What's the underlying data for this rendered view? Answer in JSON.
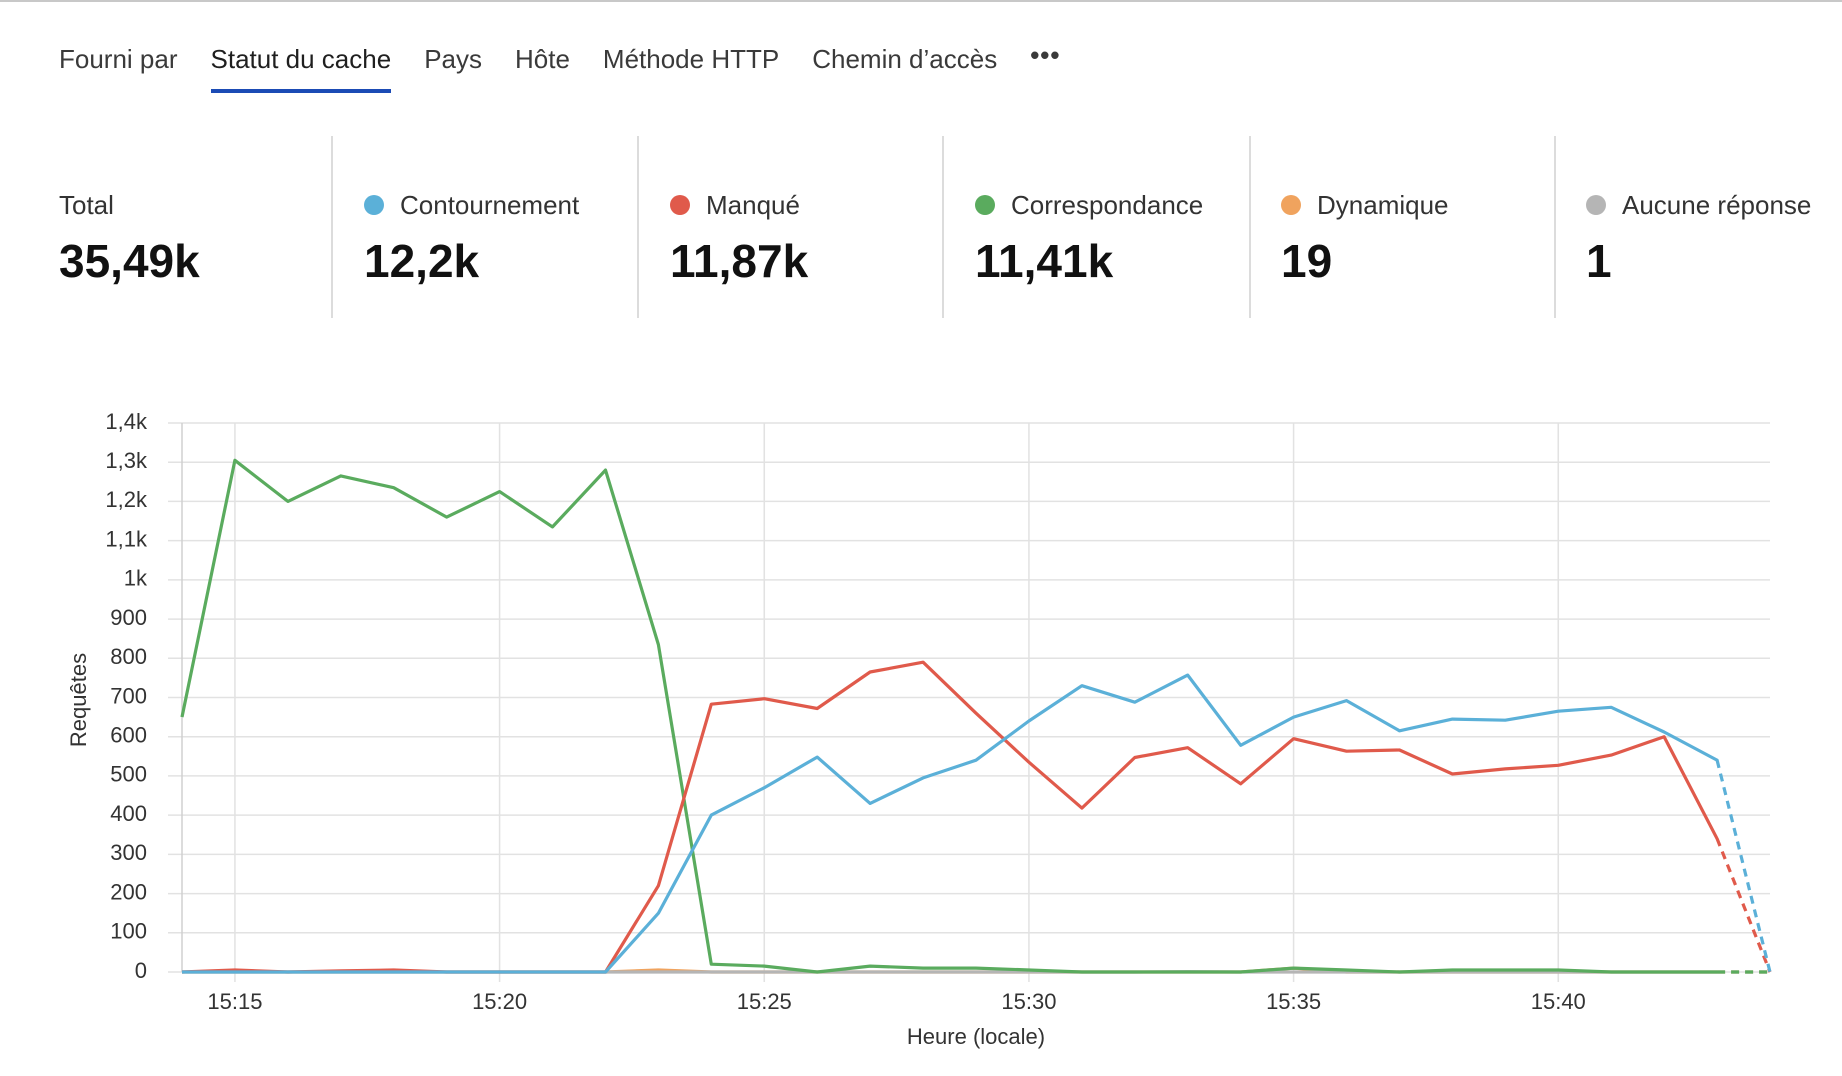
{
  "tabs": {
    "items": [
      "Fourni par",
      "Statut du cache",
      "Pays",
      "Hôte",
      "Méthode HTTP",
      "Chemin d’accès"
    ],
    "active": 1
  },
  "stats": [
    {
      "label": "Total",
      "value": "35,49k"
    },
    {
      "label": "Contournement",
      "value": "12,2k",
      "color": "#5bb0d8"
    },
    {
      "label": "Manqué",
      "value": "11,87k",
      "color": "#e05a4b"
    },
    {
      "label": "Correspondance",
      "value": "11,41k",
      "color": "#5aab5e"
    },
    {
      "label": "Dynamique",
      "value": "19",
      "color": "#f0a35e"
    },
    {
      "label": "Aucune réponse",
      "value": "1",
      "color": "#b5b5b5"
    }
  ],
  "chart_data": {
    "type": "line",
    "y_label": "Requêtes",
    "x_label": "Heure (locale)",
    "categories": [
      null,
      "15:15",
      null,
      null,
      null,
      null,
      "15:20",
      null,
      null,
      null,
      null,
      "15:25",
      null,
      null,
      null,
      null,
      "15:30",
      null,
      null,
      null,
      null,
      "15:35",
      null,
      null,
      null,
      null,
      "15:40",
      null,
      null,
      null,
      null
    ],
    "series": [
      {
        "name": "Dynamique",
        "color": "#f0a35e",
        "values": [
          0,
          0,
          0,
          0,
          0,
          0,
          0,
          0,
          0,
          5,
          0,
          0,
          0,
          0,
          0,
          0,
          0,
          0,
          0,
          0,
          0,
          10,
          0,
          0,
          0,
          0,
          0,
          0,
          0,
          0,
          0
        ]
      },
      {
        "name": "Aucune réponse",
        "color": "#b5b5b5",
        "values": [
          0,
          0,
          0,
          0,
          0,
          0,
          0,
          0,
          0,
          0,
          0,
          0,
          0,
          0,
          0,
          0,
          0,
          0,
          0,
          1,
          0,
          0,
          0,
          0,
          0,
          0,
          0,
          0,
          0,
          0,
          0
        ]
      },
      {
        "name": "Correspondance",
        "color": "#5aab5e",
        "values": [
          650,
          1305,
          1200,
          1265,
          1235,
          1160,
          1225,
          1135,
          1280,
          835,
          20,
          15,
          0,
          15,
          10,
          10,
          5,
          0,
          0,
          0,
          0,
          10,
          5,
          0,
          5,
          5,
          5,
          0,
          0,
          0,
          0
        ]
      },
      {
        "name": "Manqué",
        "color": "#e05a4b",
        "values": [
          0,
          5,
          0,
          3,
          5,
          0,
          0,
          0,
          0,
          220,
          683,
          697,
          672,
          765,
          790,
          660,
          535,
          418,
          547,
          572,
          480,
          595,
          563,
          566,
          505,
          518,
          527,
          553,
          600,
          340,
          0
        ]
      },
      {
        "name": "Contournement",
        "color": "#5bb0d8",
        "values": [
          0,
          0,
          0,
          0,
          0,
          0,
          0,
          0,
          0,
          150,
          400,
          470,
          548,
          430,
          495,
          540,
          640,
          730,
          688,
          757,
          578,
          650,
          692,
          615,
          645,
          642,
          665,
          675,
          612,
          540,
          0
        ]
      }
    ],
    "ylim": [
      0,
      1400
    ],
    "yticks": [
      0,
      100,
      200,
      300,
      400,
      500,
      600,
      700,
      800,
      900,
      {
        "value": 1000,
        "label": "1k"
      },
      {
        "value": 1100,
        "label": "1,1k"
      },
      {
        "value": 1200,
        "label": "1,2k"
      },
      {
        "value": 1300,
        "label": "1,3k"
      },
      {
        "value": 1400,
        "label": "1,4k"
      }
    ],
    "grid": true
  }
}
